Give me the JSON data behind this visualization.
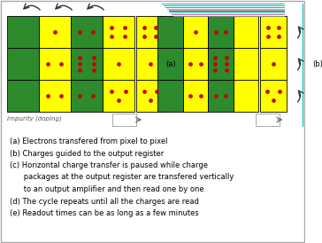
{
  "bg_color": "#ffffff",
  "border_color": "#aaaaaa",
  "green_color": "#2d8a2d",
  "yellow_color": "#ffff00",
  "red_dot_color": "#cc0000",
  "lines": [
    "(a) Electrons transfered from pixel to pixel",
    "(b) Charges guided to the output register",
    "(c) Horizontal charge transfer is paused while charge",
    "      packages at the output register are transfered vertically",
    "      to an output amplifier and then read one by one",
    "(d) The cycle repeats until all the charges are read",
    "(e) Readout times can be as long as a few minutes"
  ],
  "label_a": "(a)",
  "label_b": "(b)",
  "impurity_label": "Impurity (doping)",
  "cyan_color": "#00bbbb",
  "pink_color": "#cc6699",
  "gray_color": "#888888",
  "black": "#000000"
}
